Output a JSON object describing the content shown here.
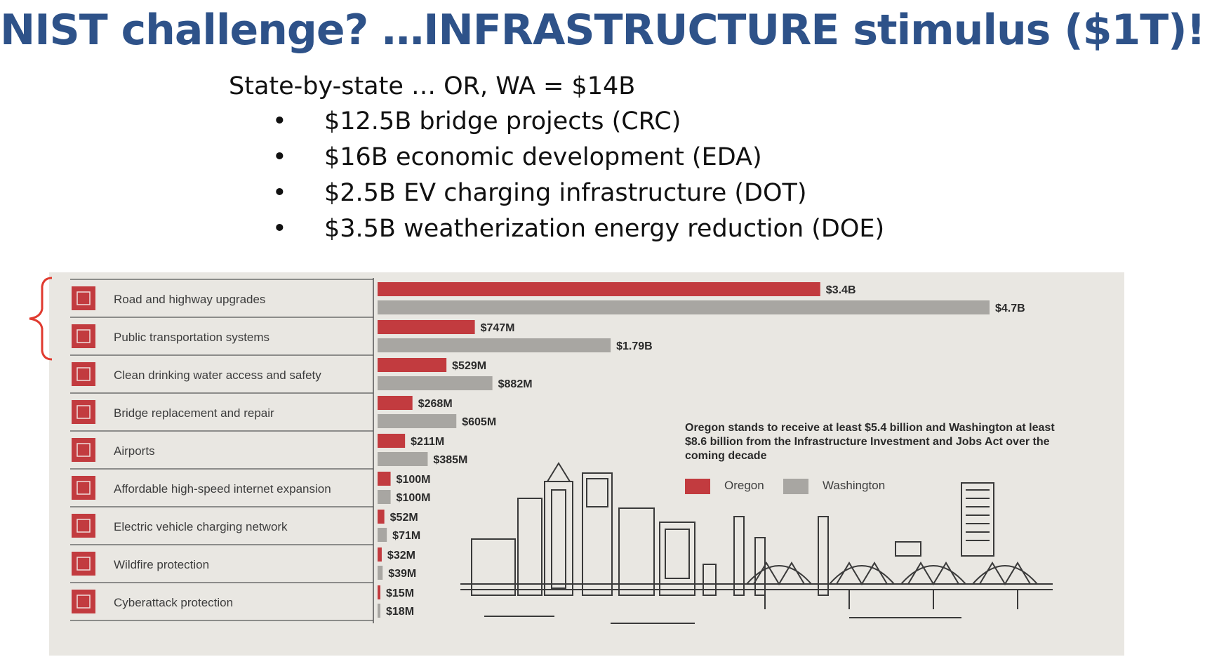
{
  "slide": {
    "title": "NIST challenge?  …INFRASTRUCTURE stimulus ($1T)!",
    "subtitle": "State-by-state … OR, WA = $14B",
    "bullet_char": "•",
    "bullets": [
      "$12.5B bridge projects (CRC)",
      "$16B economic development (EDA)",
      "$2.5B EV charging infrastructure (DOT)",
      "$3.5B weatherization energy reduction (DOE)"
    ],
    "bracket_color": "#e03a2f"
  },
  "colors": {
    "title": "#2e5289",
    "oregon": "#c23b3f",
    "washington": "#a8a6a2",
    "icon": "#c23b3f",
    "paper": "#e9e7e2"
  },
  "annotation": "Oregon stands to receive at least $5.4 billion and Washington at least $8.6 billion from the Infrastructure Investment and Jobs Act over the coming decade",
  "chart_data": {
    "type": "bar",
    "orientation": "horizontal",
    "categories": [
      "Road and highway upgrades",
      "Public transportation systems",
      "Clean drinking water access and safety",
      "Bridge replacement and repair",
      "Airports",
      "Affordable high-speed internet expansion",
      "Electric vehicle charging network",
      "Wildfire protection",
      "Cyberattack protection"
    ],
    "icons": [
      "road-icon",
      "bus-icon",
      "water-icon",
      "bridge-icon",
      "airplane-icon",
      "wifi-icon",
      "ev-charger-icon",
      "fire-icon",
      "shield-icon"
    ],
    "unit": "USD millions",
    "series": [
      {
        "name": "Oregon",
        "color": "#c23b3f",
        "values": [
          3400,
          747,
          529,
          268,
          211,
          100,
          52,
          32,
          15
        ],
        "labels": [
          "$3.4B",
          "$747M",
          "$529M",
          "$268M",
          "$211M",
          "$100M",
          "$52M",
          "$32M",
          "$15M"
        ]
      },
      {
        "name": "Washington",
        "color": "#a8a6a2",
        "values": [
          4700,
          1790,
          882,
          605,
          385,
          100,
          71,
          39,
          18
        ],
        "labels": [
          "$4.7B",
          "$1.79B",
          "$882M",
          "$605M",
          "$385M",
          "$100M",
          "$71M",
          "$39M",
          "$18M"
        ]
      }
    ],
    "xlim": [
      0,
      4700
    ],
    "grid": false,
    "legend": "right"
  }
}
